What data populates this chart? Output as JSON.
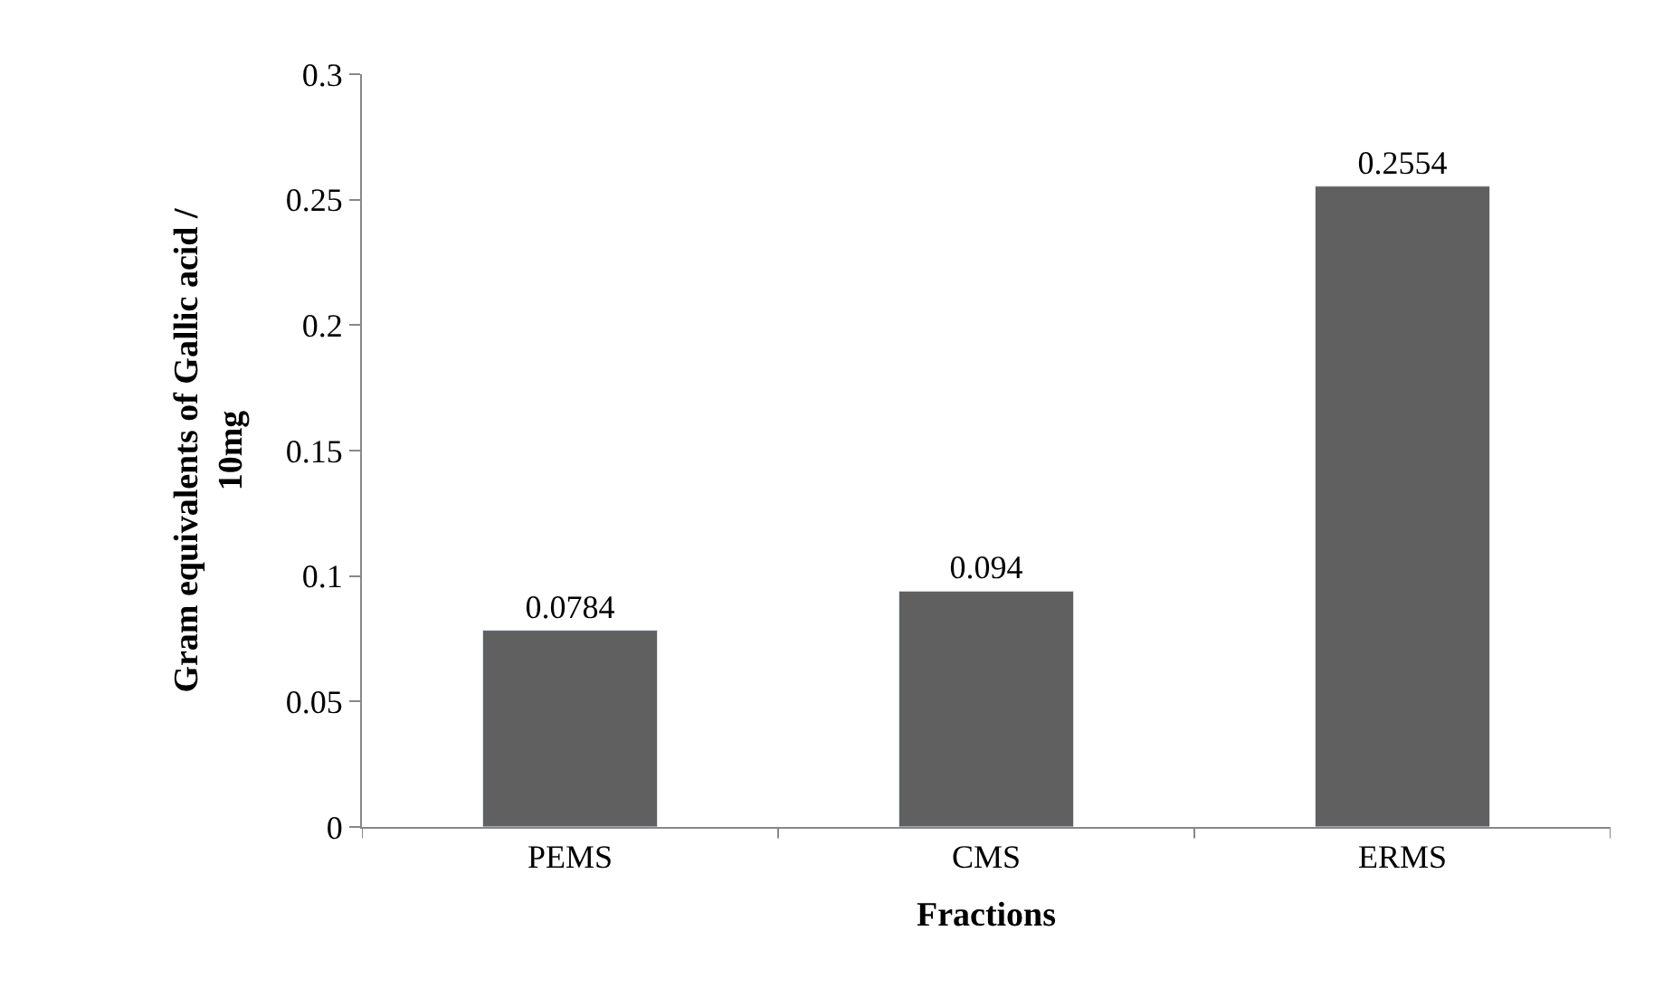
{
  "chart_data": {
    "type": "bar",
    "xlabel": "Fractions",
    "ylabel": "Gram equivalents of Gallic acid / 10mg",
    "categories": [
      "PEMS",
      "CMS",
      "ERMS"
    ],
    "values": [
      0.0784,
      0.094,
      0.2554
    ],
    "value_labels": [
      "0.0784",
      "0.094",
      "0.2554"
    ],
    "color": "#606060",
    "ylim": [
      0,
      0.3
    ],
    "yticks": [
      0,
      0.05,
      0.1,
      0.15,
      0.2,
      0.25,
      0.3
    ]
  }
}
